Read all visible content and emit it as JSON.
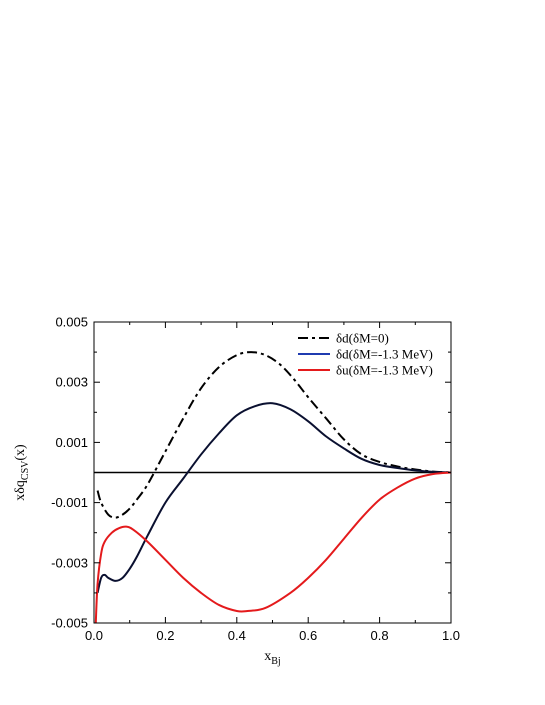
{
  "chart_data": {
    "type": "line",
    "xlabel": "x",
    "xlabel_sub": "Bj",
    "ylabel": "xδq",
    "ylabel_sub": "CSV",
    "ylabel_suffix": "(x)",
    "xlim": [
      0,
      1
    ],
    "ylim": [
      -0.005,
      0.005
    ],
    "x_ticks": [
      0,
      0.2,
      0.4,
      0.6,
      0.8,
      1.0
    ],
    "x_tick_labels": [
      "0.0",
      "0.2",
      "0.4",
      "0.6",
      "0.8",
      "1.0"
    ],
    "y_ticks": [
      -0.005,
      -0.003,
      -0.001,
      0.001,
      0.003,
      0.005
    ],
    "y_tick_labels": [
      "-0.005",
      "-0.003",
      "-0.001",
      "0.001",
      "0.003",
      "0.005"
    ],
    "grid": false,
    "legend_position": "top-right",
    "zero_line": true,
    "series": [
      {
        "name": "δd(δM=0)",
        "color": "#000000",
        "style": "dashdot",
        "x": [
          0.01,
          0.02,
          0.04,
          0.06,
          0.08,
          0.1,
          0.12,
          0.15,
          0.2,
          0.25,
          0.3,
          0.35,
          0.4,
          0.44,
          0.48,
          0.52,
          0.56,
          0.6,
          0.65,
          0.7,
          0.75,
          0.8,
          0.85,
          0.9,
          0.95,
          1.0
        ],
        "y": [
          -0.0006,
          -0.001,
          -0.0014,
          -0.0015,
          -0.0014,
          -0.0012,
          -0.0009,
          -0.0004,
          0.0007,
          0.0018,
          0.0028,
          0.0035,
          0.0039,
          0.004,
          0.0039,
          0.0036,
          0.0031,
          0.0025,
          0.0018,
          0.0011,
          0.0006,
          0.00035,
          0.0002,
          0.0001,
          3e-05,
          0.0
        ]
      },
      {
        "name": "δd(δM=-1.3 MeV)",
        "color": "#1f3bb0",
        "style": "solid",
        "x": [
          0.01,
          0.02,
          0.03,
          0.04,
          0.06,
          0.08,
          0.1,
          0.12,
          0.15,
          0.2,
          0.25,
          0.3,
          0.35,
          0.4,
          0.45,
          0.5,
          0.55,
          0.6,
          0.65,
          0.7,
          0.75,
          0.8,
          0.85,
          0.9,
          0.95,
          1.0
        ],
        "y": [
          -0.004,
          -0.0035,
          -0.0034,
          -0.0035,
          -0.0036,
          -0.0035,
          -0.0032,
          -0.0028,
          -0.0021,
          -0.001,
          -0.0002,
          0.0006,
          0.0013,
          0.0019,
          0.0022,
          0.0023,
          0.0021,
          0.0017,
          0.0012,
          0.0008,
          0.00045,
          0.00025,
          0.00015,
          7e-05,
          2e-05,
          0.0
        ]
      },
      {
        "name": "δu(δM=-1.3 MeV)",
        "color": "#e41a1c",
        "style": "solid",
        "x": [
          0.005,
          0.01,
          0.02,
          0.03,
          0.05,
          0.07,
          0.09,
          0.11,
          0.15,
          0.2,
          0.25,
          0.3,
          0.35,
          0.4,
          0.43,
          0.48,
          0.55,
          0.6,
          0.65,
          0.7,
          0.75,
          0.8,
          0.85,
          0.9,
          0.95,
          1.0
        ],
        "y": [
          -0.005,
          -0.0037,
          -0.0027,
          -0.0023,
          -0.002,
          -0.00185,
          -0.0018,
          -0.0019,
          -0.0023,
          -0.0029,
          -0.0035,
          -0.004,
          -0.0044,
          -0.0046,
          -0.0046,
          -0.0045,
          -0.004,
          -0.0035,
          -0.0029,
          -0.0022,
          -0.0015,
          -0.0009,
          -0.0005,
          -0.0002,
          -5e-05,
          0.0
        ]
      }
    ]
  }
}
